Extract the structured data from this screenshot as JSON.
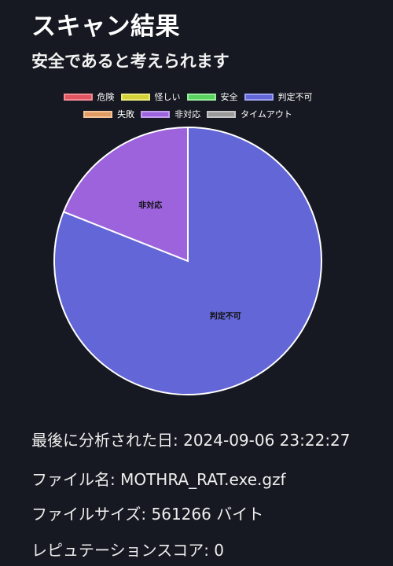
{
  "page": {
    "title": "スキャン結果",
    "subtitle": "安全であると考えられます"
  },
  "legend": {
    "rows": [
      [
        {
          "label": "危険",
          "color": "#e05561",
          "name": "danger"
        },
        {
          "label": "怪しい",
          "color": "#d4d23a",
          "name": "suspicious"
        },
        {
          "label": "安全",
          "color": "#5ad25f",
          "name": "safe"
        },
        {
          "label": "判定不可",
          "color": "#6366d6",
          "name": "undetermined"
        }
      ],
      [
        {
          "label": "失敗",
          "color": "#e09a62",
          "name": "failed"
        },
        {
          "label": "非対応",
          "color": "#9c63dc",
          "name": "unsupported"
        },
        {
          "label": "タイムアウト",
          "color": "#9a9a9a",
          "name": "timeout"
        }
      ]
    ]
  },
  "chart_data": {
    "type": "pie",
    "categories": [
      "判定不可",
      "非対応"
    ],
    "values": [
      81,
      19
    ],
    "colors": [
      "#6366d6",
      "#9c63dc"
    ],
    "legend_position": "top"
  },
  "info": {
    "last_analyzed": "最後に分析された日: 2024-09-06 23:22:27",
    "file_name": "ファイル名: MOTHRA_RAT.exe.gzf",
    "file_size": "ファイルサイズ: 561266 バイト",
    "reputation": "レピュテーションスコア: 0"
  }
}
